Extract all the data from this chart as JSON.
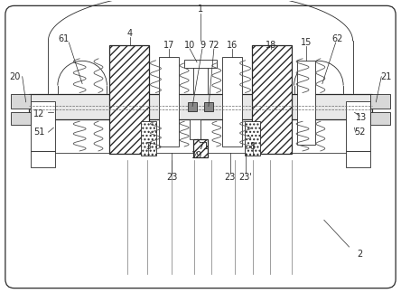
{
  "bg_color": "#ffffff",
  "line_color": "#2a2a2a",
  "fig_width": 4.44,
  "fig_height": 3.24,
  "dpi": 100
}
